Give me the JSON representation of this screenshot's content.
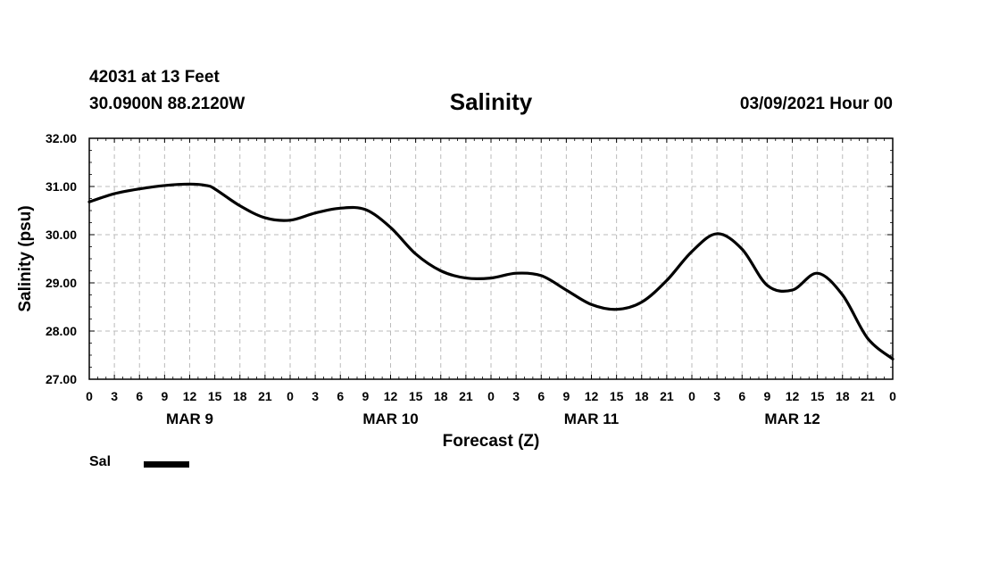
{
  "header": {
    "station": "42031 at 13 Feet",
    "coords": "30.0900N 88.2120W",
    "title": "Salinity",
    "timestamp": "03/09/2021 Hour 00"
  },
  "chart_data": {
    "type": "line",
    "title": "Salinity",
    "ylabel": "Salinity (psu)",
    "xlabel": "Forecast (Z)",
    "ylim": [
      27.0,
      32.0
    ],
    "yticks": [
      "27.00",
      "28.00",
      "29.00",
      "30.00",
      "31.00",
      "32.00"
    ],
    "xlim_hours": [
      0,
      96
    ],
    "xtick_labels": [
      "0",
      "3",
      "6",
      "9",
      "12",
      "15",
      "18",
      "21",
      "0",
      "3",
      "6",
      "9",
      "12",
      "15",
      "18",
      "21",
      "0",
      "3",
      "6",
      "9",
      "12",
      "15",
      "18",
      "21",
      "0",
      "3",
      "6",
      "9",
      "12",
      "15",
      "18",
      "21",
      "0"
    ],
    "day_labels": [
      {
        "label": "MAR 9",
        "hour": 12
      },
      {
        "label": "MAR 10",
        "hour": 36
      },
      {
        "label": "MAR 11",
        "hour": 60
      },
      {
        "label": "MAR 12",
        "hour": 84
      }
    ],
    "grid": true,
    "series": [
      {
        "name": "Sal",
        "color": "#000000",
        "x": [
          0,
          3,
          6,
          9,
          12,
          14,
          15,
          18,
          21,
          24,
          27,
          30,
          33,
          36,
          39,
          42,
          45,
          48,
          51,
          54,
          57,
          60,
          63,
          66,
          69,
          72,
          75,
          78,
          81,
          84,
          87,
          90,
          93,
          96
        ],
        "values": [
          30.68,
          30.85,
          30.95,
          31.02,
          31.05,
          31.02,
          30.95,
          30.6,
          30.35,
          30.3,
          30.45,
          30.55,
          30.52,
          30.15,
          29.6,
          29.25,
          29.1,
          29.1,
          29.2,
          29.15,
          28.85,
          28.55,
          28.45,
          28.6,
          29.05,
          29.65,
          30.02,
          29.7,
          28.95,
          28.85,
          29.2,
          28.75,
          27.85,
          27.42
        ]
      }
    ]
  },
  "legend": {
    "items": [
      {
        "label": "Sal",
        "color": "#000000"
      }
    ]
  }
}
